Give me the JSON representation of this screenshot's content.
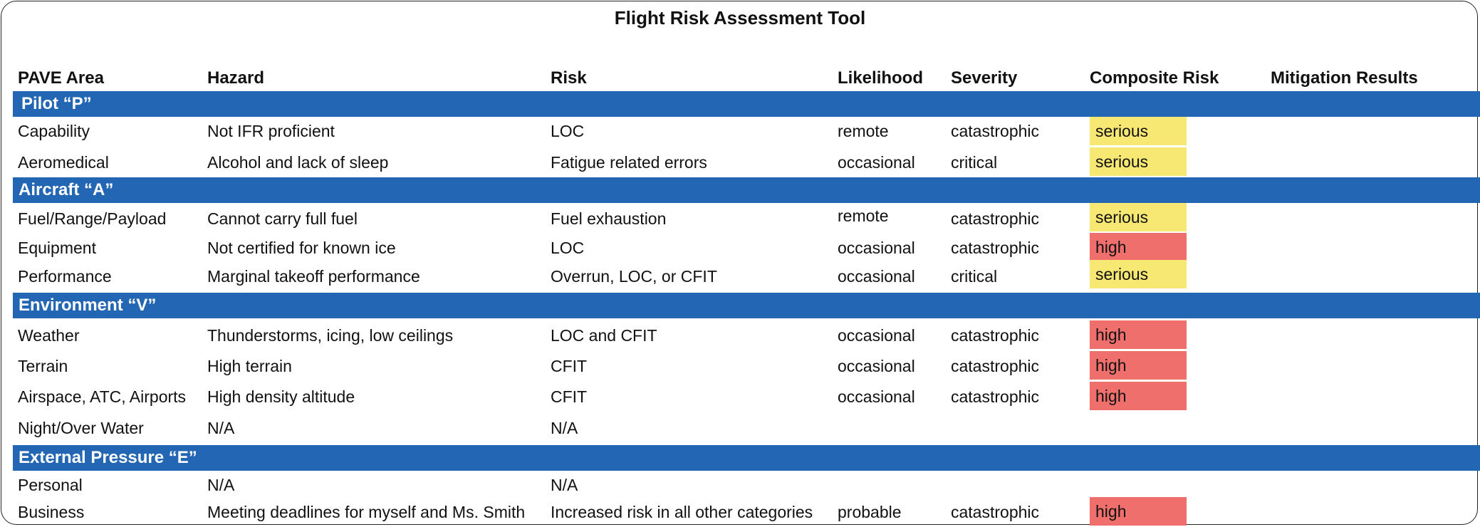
{
  "title": "Flight Risk Assessment Tool",
  "headers": {
    "pave_area": "PAVE Area",
    "hazard": "Hazard",
    "risk": "Risk",
    "likelihood": "Likelihood",
    "severity": "Severity",
    "composite": "Composite Risk",
    "mitigation": "Mitigation Results"
  },
  "sections": [
    {
      "label": "Pilot “P”",
      "rows": [
        {
          "area": "Capability",
          "hazard": "Not IFR proficient",
          "risk": "LOC",
          "likelihood": "remote",
          "severity": "catastrophic",
          "composite": "serious"
        },
        {
          "area": "Aeromedical",
          "hazard": "Alcohol and lack of sleep",
          "risk": "Fatigue related errors",
          "likelihood": "occasional",
          "severity": "critical",
          "composite": "serious"
        }
      ]
    },
    {
      "label": "Aircraft “A”",
      "rows": [
        {
          "area": "Fuel/Range/Payload",
          "hazard": "Cannot carry full fuel",
          "risk": "Fuel exhaustion",
          "likelihood": "remote",
          "severity": "catastrophic",
          "composite": "serious"
        },
        {
          "area": "Equipment",
          "hazard": "Not certified for known ice",
          "risk": "LOC",
          "likelihood": "occasional",
          "severity": "catastrophic",
          "composite": "high"
        },
        {
          "area": "Performance",
          "hazard": "Marginal takeoff performance",
          "risk": "Overrun, LOC, or CFIT",
          "likelihood": "occasional",
          "severity": "critical",
          "composite": "serious"
        }
      ]
    },
    {
      "label": "Environment “V”",
      "rows": [
        {
          "area": "Weather",
          "hazard": "Thunderstorms, icing, low ceilings",
          "risk": "LOC and CFIT",
          "likelihood": "occasional",
          "severity": "catastrophic",
          "composite": "high"
        },
        {
          "area": "Terrain",
          "hazard": "High terrain",
          "risk": "CFIT",
          "likelihood": "occasional",
          "severity": "catastrophic",
          "composite": "high"
        },
        {
          "area": "Airspace, ATC, Airports",
          "hazard": "High density altitude",
          "risk": "CFIT",
          "likelihood": "occasional",
          "severity": "catastrophic",
          "composite": "high"
        },
        {
          "area": "Night/Over Water",
          "hazard": "N/A",
          "risk": "N/A",
          "likelihood": "",
          "severity": "",
          "composite": ""
        }
      ]
    },
    {
      "label": "External Pressure “E”",
      "rows": [
        {
          "area": "Personal",
          "hazard": "N/A",
          "risk": "N/A",
          "likelihood": "",
          "severity": "",
          "composite": ""
        },
        {
          "area": "Business",
          "hazard": "Meeting deadlines for myself and Ms. Smith",
          "risk": "Increased risk in all other categories",
          "likelihood": "probable",
          "severity": "catastrophic",
          "composite": "high"
        }
      ]
    }
  ],
  "colors": {
    "section_band": "#2366b3",
    "serious": "#f7e874",
    "high": "#ef6f6c"
  }
}
